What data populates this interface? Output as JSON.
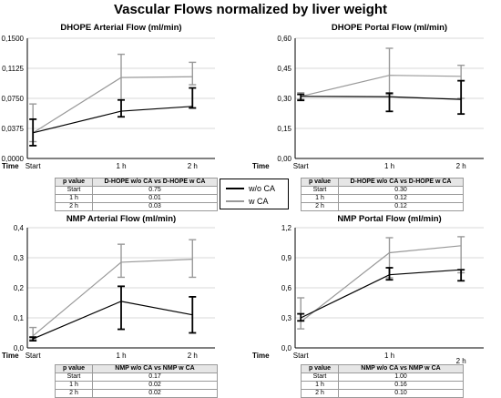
{
  "title": "Vascular Flows normalized by liver weight",
  "legend": {
    "items": [
      {
        "label": "w/o CA",
        "color": "#000000"
      },
      {
        "label": "w CA",
        "color": "#999999"
      }
    ]
  },
  "chart_data": [
    {
      "type": "line",
      "title": "DHOPE Arterial Flow (ml/min)",
      "xlabel": "Time",
      "categories": [
        "Start",
        "1 h",
        "2 h"
      ],
      "ylim": [
        0,
        0.15
      ],
      "yticks": [
        "0,0000",
        "0,0375",
        "0,0750",
        "0,1125",
        "0,1500"
      ],
      "series": [
        {
          "name": "w/o CA",
          "color": "#000000",
          "values": [
            0.032,
            0.059,
            0.065
          ],
          "err_low": [
            0.016,
            0.052,
            0.063
          ],
          "err_high": [
            0.049,
            0.073,
            0.088
          ]
        },
        {
          "name": "w CA",
          "color": "#999999",
          "values": [
            0.032,
            0.101,
            0.102
          ],
          "err_low": [
            0.021,
            0.073,
            0.092
          ],
          "err_high": [
            0.068,
            0.13,
            0.12
          ]
        }
      ],
      "stats": {
        "header": [
          "p value",
          "D-HOPE w/o CA vs D-HOPE w CA"
        ],
        "rows": [
          [
            "Start",
            "0.75"
          ],
          [
            "1 h",
            "0.01"
          ],
          [
            "2 h",
            "0.03"
          ]
        ]
      }
    },
    {
      "type": "line",
      "title": "DHOPE Portal Flow (ml/min)",
      "xlabel": "Time",
      "categories": [
        "Start",
        "1 h",
        "2 h"
      ],
      "ylim": [
        0,
        0.6
      ],
      "yticks": [
        "0,00",
        "0,15",
        "0,30",
        "0,45",
        "0,60"
      ],
      "series": [
        {
          "name": "w/o CA",
          "color": "#000000",
          "values": [
            0.31,
            0.308,
            0.295
          ],
          "err_low": [
            0.29,
            0.235,
            0.222
          ],
          "err_high": [
            0.32,
            0.326,
            0.388
          ]
        },
        {
          "name": "w CA",
          "color": "#999999",
          "values": [
            0.31,
            0.415,
            0.41
          ],
          "err_low": [
            0.296,
            0.32,
            0.3
          ],
          "err_high": [
            0.328,
            0.55,
            0.465
          ]
        }
      ],
      "stats": {
        "header": [
          "p value",
          "D-HOPE w/o CA vs D-HOPE w CA"
        ],
        "rows": [
          [
            "Start",
            "0.30"
          ],
          [
            "1 h",
            "0.12"
          ],
          [
            "2 h",
            "0.12"
          ]
        ]
      }
    },
    {
      "type": "line",
      "title": "NMP Arterial Flow (ml/min)",
      "xlabel": "Time",
      "categories": [
        "Start",
        "1 h",
        "2 h"
      ],
      "ylim": [
        0,
        0.4
      ],
      "yticks": [
        "0,0",
        "0,1",
        "0,2",
        "0,3",
        "0,4"
      ],
      "series": [
        {
          "name": "w/o CA",
          "color": "#000000",
          "values": [
            0.03,
            0.155,
            0.11
          ],
          "err_low": [
            0.024,
            0.062,
            0.05
          ],
          "err_high": [
            0.036,
            0.205,
            0.17
          ]
        },
        {
          "name": "w CA",
          "color": "#999999",
          "values": [
            0.04,
            0.285,
            0.295
          ],
          "err_low": [
            0.03,
            0.235,
            0.235
          ],
          "err_high": [
            0.068,
            0.345,
            0.36
          ]
        }
      ],
      "stats": {
        "header": [
          "p value",
          "NMP w/o CA vs NMP w CA"
        ],
        "rows": [
          [
            "Start",
            "0.17"
          ],
          [
            "1 h",
            "0.02"
          ],
          [
            "2 h",
            "0.02"
          ]
        ]
      }
    },
    {
      "type": "line",
      "title": "NMP Portal Flow (ml/min)",
      "xlabel": "Time",
      "categories": [
        "Start",
        "1 h",
        "2 h"
      ],
      "ylim": [
        0,
        1.2
      ],
      "yticks": [
        "0,0",
        "0,3",
        "0,6",
        "0,9",
        "1,2"
      ],
      "series": [
        {
          "name": "w/o CA",
          "color": "#000000",
          "values": [
            0.3,
            0.73,
            0.78
          ],
          "err_low": [
            0.27,
            0.68,
            0.67
          ],
          "err_high": [
            0.34,
            0.8,
            0.78
          ]
        },
        {
          "name": "w CA",
          "color": "#999999",
          "values": [
            0.26,
            0.95,
            1.02
          ],
          "err_low": [
            0.19,
            0.7,
            0.75
          ],
          "err_high": [
            0.5,
            1.1,
            1.11
          ]
        }
      ],
      "stats": {
        "header": [
          "p value",
          "NMP w/o CA vs NMP w CA"
        ],
        "rows": [
          [
            "Start",
            "1.00"
          ],
          [
            "1 h",
            "0.16"
          ],
          [
            "2 h",
            "0.10"
          ]
        ]
      }
    }
  ]
}
